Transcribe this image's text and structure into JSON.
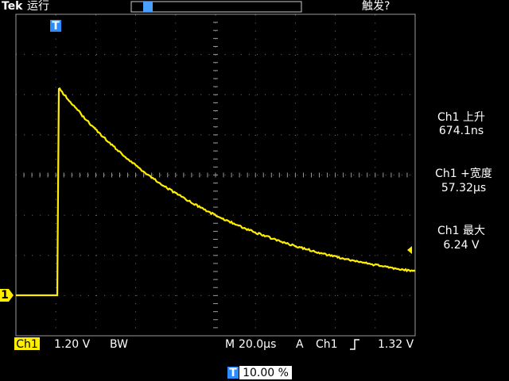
{
  "header": {
    "brand": "Tek",
    "status": "运行",
    "trigger_state": "触发?"
  },
  "measurements": [
    {
      "label": "Ch1 上升",
      "value": "674.1ns"
    },
    {
      "label": "Ch1 +宽度",
      "value": "57.32µs"
    },
    {
      "label": "Ch1 最大",
      "value": "6.24 V"
    }
  ],
  "footer": {
    "channel": "Ch1",
    "scale": "1.20 V",
    "bandwidth": "BW",
    "timebase_prefix": "M",
    "timebase": "20.0µs",
    "trigger_mode": "A",
    "trigger_source": "Ch1",
    "trigger_level": "1.32 V",
    "trigger_marker": "T",
    "trigger_position": "10.00 %"
  },
  "markers": {
    "channel": "1",
    "trigger": "T"
  }
}
